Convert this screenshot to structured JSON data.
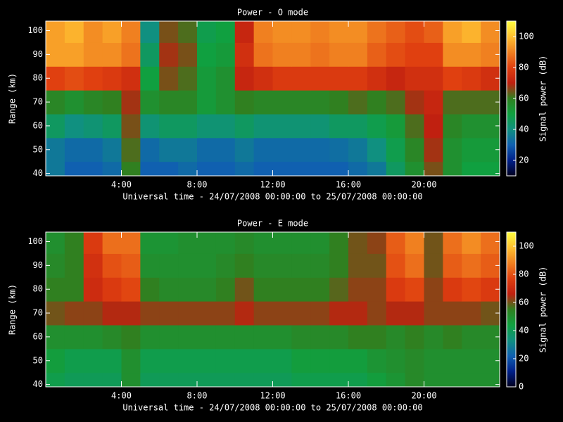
{
  "chart_data": [
    {
      "type": "heatmap",
      "title": "Power - O mode",
      "xlabel": "Universal time - 24/07/2008 00:00:00 to 25/07/2008 00:00:00",
      "ylabel": "Range (km)",
      "colorbar_label": "Signal power (dB)",
      "xlim": [
        0,
        24
      ],
      "xticks": [
        {
          "value": 4,
          "label": "4:00"
        },
        {
          "value": 8,
          "label": "8:00"
        },
        {
          "value": 12,
          "label": "12:00"
        },
        {
          "value": 16,
          "label": "16:00"
        },
        {
          "value": 20,
          "label": "20:00"
        }
      ],
      "ylim": [
        39,
        104
      ],
      "yticks": [
        40,
        50,
        60,
        70,
        80,
        90,
        100
      ],
      "clim": [
        10,
        110
      ],
      "cticks": [
        20,
        40,
        60,
        80,
        100
      ],
      "colormap": [
        "#000020",
        "#00208a",
        "#1060b0",
        "#109080",
        "#10a040",
        "#308020",
        "#c02010",
        "#e04010",
        "#f08020",
        "#ffc030",
        "#ffff40"
      ],
      "x_bins": [
        0,
        1,
        2,
        3,
        4,
        5,
        6,
        7,
        8,
        9,
        10,
        11,
        12,
        13,
        14,
        15,
        16,
        17,
        18,
        19,
        20,
        21,
        22,
        23,
        24
      ],
      "y_bins": [
        39,
        45,
        55,
        65,
        75,
        85,
        95,
        104
      ],
      "z": [
        [
          35,
          30,
          30,
          32,
          60,
          30,
          30,
          32,
          30,
          30,
          32,
          30,
          30,
          30,
          30,
          30,
          32,
          35,
          45,
          55,
          65,
          55,
          50,
          50
        ],
        [
          35,
          32,
          32,
          35,
          62,
          32,
          35,
          35,
          32,
          32,
          35,
          32,
          32,
          32,
          32,
          33,
          35,
          40,
          48,
          58,
          68,
          55,
          52,
          52
        ],
        [
          45,
          40,
          42,
          45,
          65,
          42,
          45,
          45,
          42,
          42,
          45,
          42,
          42,
          42,
          42,
          45,
          45,
          48,
          52,
          62,
          70,
          58,
          55,
          55
        ],
        [
          58,
          55,
          58,
          60,
          68,
          55,
          58,
          58,
          52,
          55,
          60,
          58,
          58,
          58,
          58,
          60,
          62,
          60,
          62,
          68,
          72,
          62,
          62,
          62
        ],
        [
          80,
          82,
          80,
          78,
          75,
          50,
          65,
          62,
          52,
          55,
          72,
          75,
          78,
          78,
          78,
          78,
          78,
          75,
          72,
          75,
          75,
          80,
          78,
          75
        ],
        [
          95,
          95,
          92,
          92,
          88,
          45,
          68,
          65,
          50,
          52,
          75,
          88,
          90,
          90,
          88,
          90,
          90,
          85,
          82,
          80,
          80,
          92,
          92,
          90
        ],
        [
          95,
          98,
          92,
          95,
          90,
          40,
          65,
          62,
          48,
          50,
          72,
          90,
          92,
          92,
          90,
          92,
          92,
          88,
          85,
          82,
          85,
          95,
          98,
          92
        ]
      ]
    },
    {
      "type": "heatmap",
      "title": "Power - E mode",
      "xlabel": "Universal time - 24/07/2008 00:00:00 to 25/07/2008 00:00:00",
      "ylabel": "Range (km)",
      "colorbar_label": "Signal power (dB)",
      "xlim": [
        0,
        24
      ],
      "xticks": [
        {
          "value": 4,
          "label": "4:00"
        },
        {
          "value": 8,
          "label": "8:00"
        },
        {
          "value": 12,
          "label": "12:00"
        },
        {
          "value": 16,
          "label": "16:00"
        },
        {
          "value": 20,
          "label": "20:00"
        }
      ],
      "ylim": [
        39,
        104
      ],
      "yticks": [
        40,
        50,
        60,
        70,
        80,
        90,
        100
      ],
      "clim": [
        0,
        110
      ],
      "cticks": [
        0,
        20,
        40,
        60,
        80,
        100
      ],
      "colormap": [
        "#000020",
        "#00208a",
        "#1060b0",
        "#109080",
        "#10a040",
        "#308020",
        "#c02010",
        "#e04010",
        "#f08020",
        "#ffc030",
        "#ffff40"
      ],
      "x_bins": [
        0,
        1,
        2,
        3,
        4,
        5,
        6,
        7,
        8,
        9,
        10,
        11,
        12,
        13,
        14,
        15,
        16,
        17,
        18,
        19,
        20,
        21,
        22,
        23,
        24
      ],
      "y_bins": [
        39,
        45,
        55,
        65,
        75,
        85,
        95,
        104
      ],
      "z": [
        [
          42,
          40,
          40,
          40,
          50,
          40,
          40,
          40,
          40,
          40,
          40,
          40,
          40,
          42,
          42,
          42,
          42,
          45,
          48,
          52,
          50,
          50,
          50,
          50
        ],
        [
          45,
          42,
          42,
          42,
          50,
          42,
          42,
          42,
          42,
          42,
          42,
          42,
          42,
          45,
          45,
          45,
          45,
          48,
          50,
          52,
          50,
          50,
          50,
          50
        ],
        [
          50,
          50,
          50,
          52,
          55,
          50,
          50,
          50,
          50,
          50,
          50,
          50,
          50,
          52,
          52,
          52,
          55,
          55,
          52,
          55,
          52,
          55,
          52,
          52
        ],
        [
          60,
          62,
          62,
          65,
          65,
          62,
          62,
          62,
          62,
          62,
          65,
          62,
          62,
          62,
          62,
          65,
          65,
          62,
          65,
          65,
          62,
          62,
          62,
          60
        ],
        [
          55,
          55,
          70,
          75,
          78,
          55,
          52,
          52,
          52,
          55,
          60,
          55,
          55,
          55,
          55,
          58,
          62,
          62,
          75,
          78,
          62,
          75,
          78,
          75
        ],
        [
          52,
          55,
          72,
          80,
          82,
          50,
          50,
          50,
          50,
          52,
          55,
          52,
          52,
          52,
          52,
          55,
          60,
          60,
          80,
          85,
          60,
          82,
          85,
          82
        ],
        [
          50,
          55,
          75,
          85,
          85,
          48,
          48,
          50,
          50,
          50,
          52,
          50,
          50,
          50,
          50,
          55,
          60,
          62,
          82,
          88,
          60,
          85,
          90,
          85
        ]
      ]
    }
  ]
}
